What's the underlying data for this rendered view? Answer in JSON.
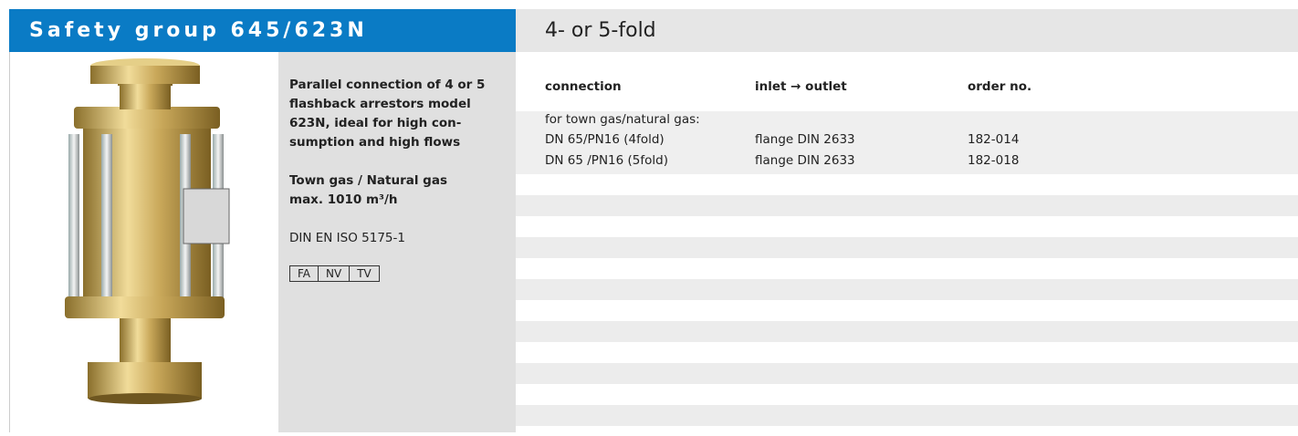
{
  "header": {
    "title": "Safety group 645/623N",
    "subtitle": "4- or 5-fold"
  },
  "description_lines": [
    "Parallel connection of 4 or 5",
    "flashback arrestors model",
    "623N, ideal for high con-",
    "sumption and high flows"
  ],
  "gas_info": [
    "Town gas / Natural gas",
    "max. 1010 m³/h"
  ],
  "standard": "DIN EN ISO 5175-1",
  "badges": [
    "FA",
    "NV",
    "TV"
  ],
  "table": {
    "columns": [
      "connection",
      "inlet → outlet",
      "order no."
    ],
    "section": "for town gas/natural gas:",
    "rows": [
      [
        "DN 65/PN16 (4fold)",
        "flange DIN 2633",
        "182-014"
      ],
      [
        "DN 65 /PN16 (5fold)",
        "flange DIN 2633",
        "182-018"
      ]
    ]
  }
}
